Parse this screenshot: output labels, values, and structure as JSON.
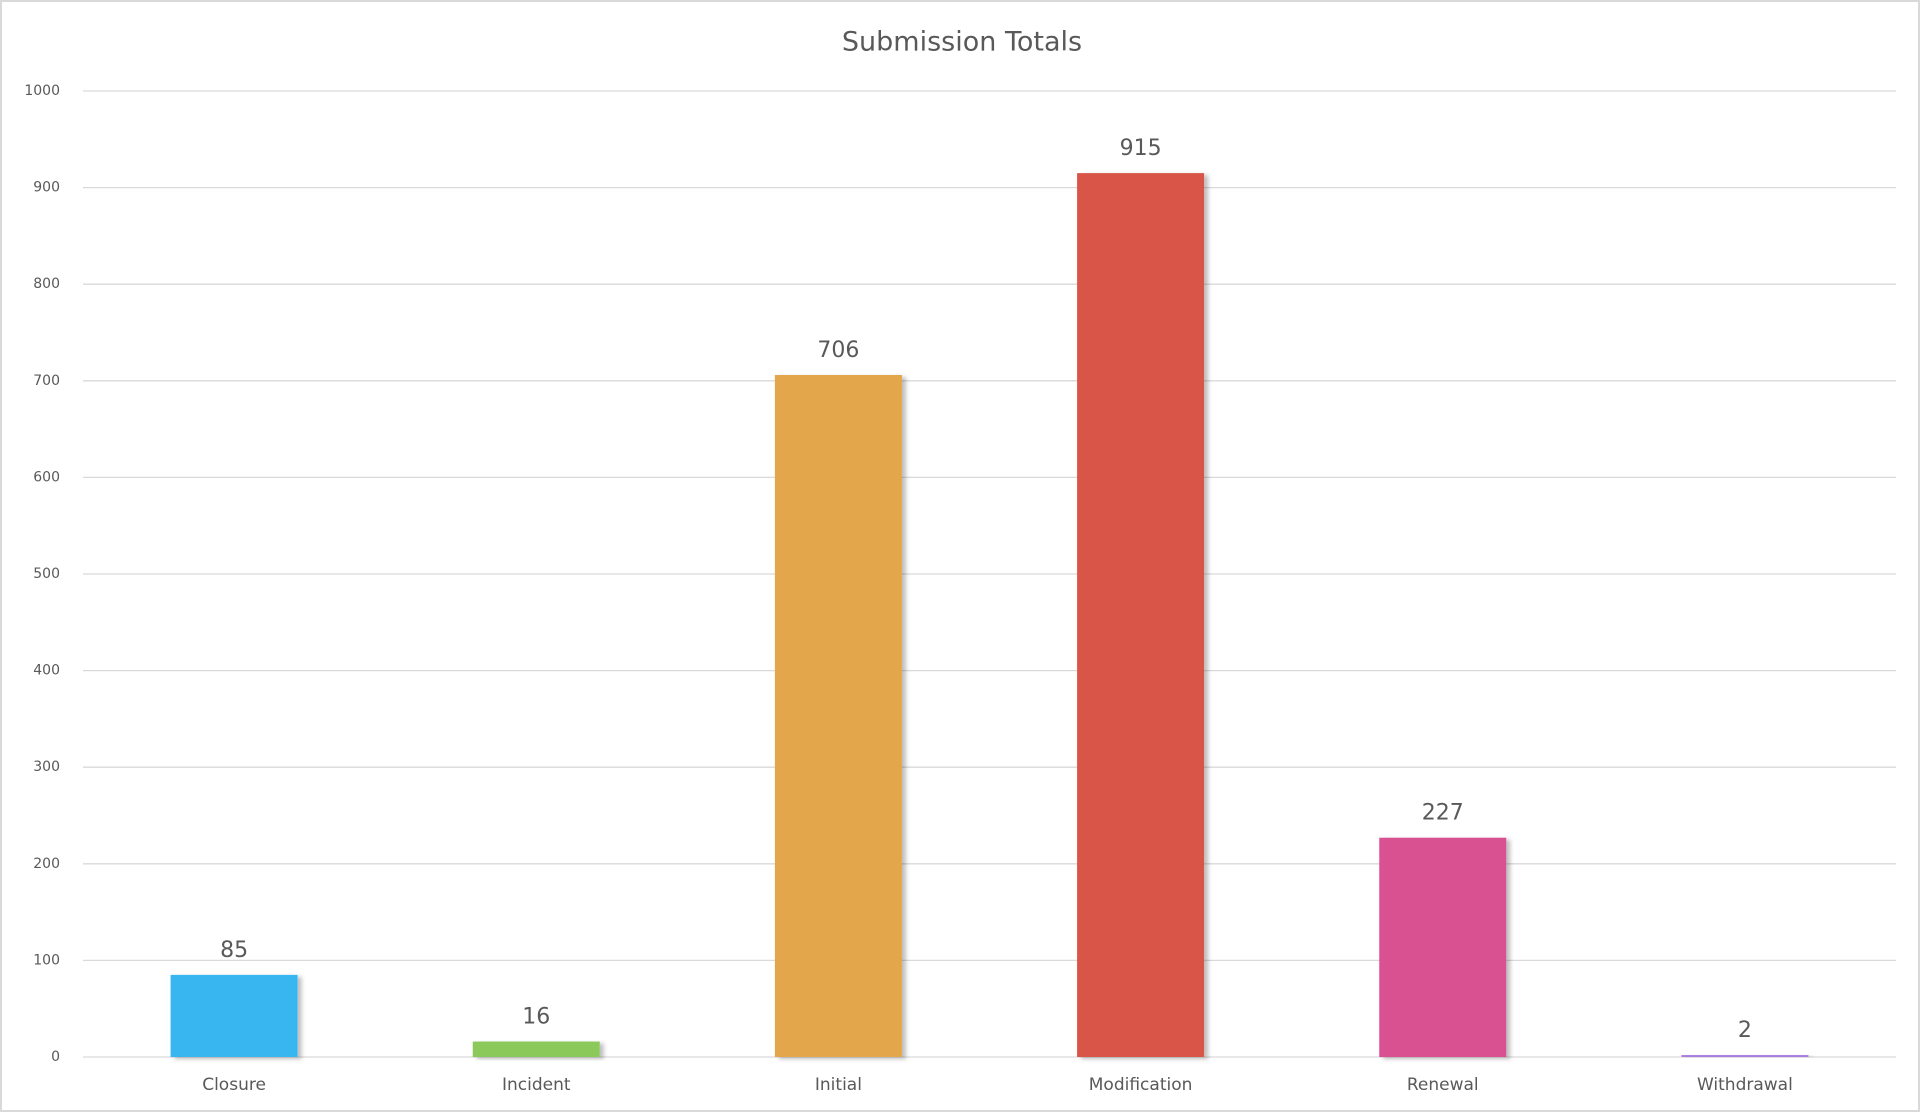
{
  "chart_data": {
    "type": "bar",
    "title": "Submission Totals",
    "categories": [
      "Closure",
      "Incident",
      "Initial",
      "Modification",
      "Renewal",
      "Withdrawal"
    ],
    "values": [
      85,
      16,
      706,
      915,
      227,
      2
    ],
    "colors": [
      "#38b6f0",
      "#8bc95a",
      "#e4a64b",
      "#d95546",
      "#d95190",
      "#a97be0"
    ],
    "ylim": [
      0,
      1000
    ],
    "yticks": [
      0,
      100,
      200,
      300,
      400,
      500,
      600,
      700,
      800,
      900,
      1000
    ],
    "grid": true
  }
}
